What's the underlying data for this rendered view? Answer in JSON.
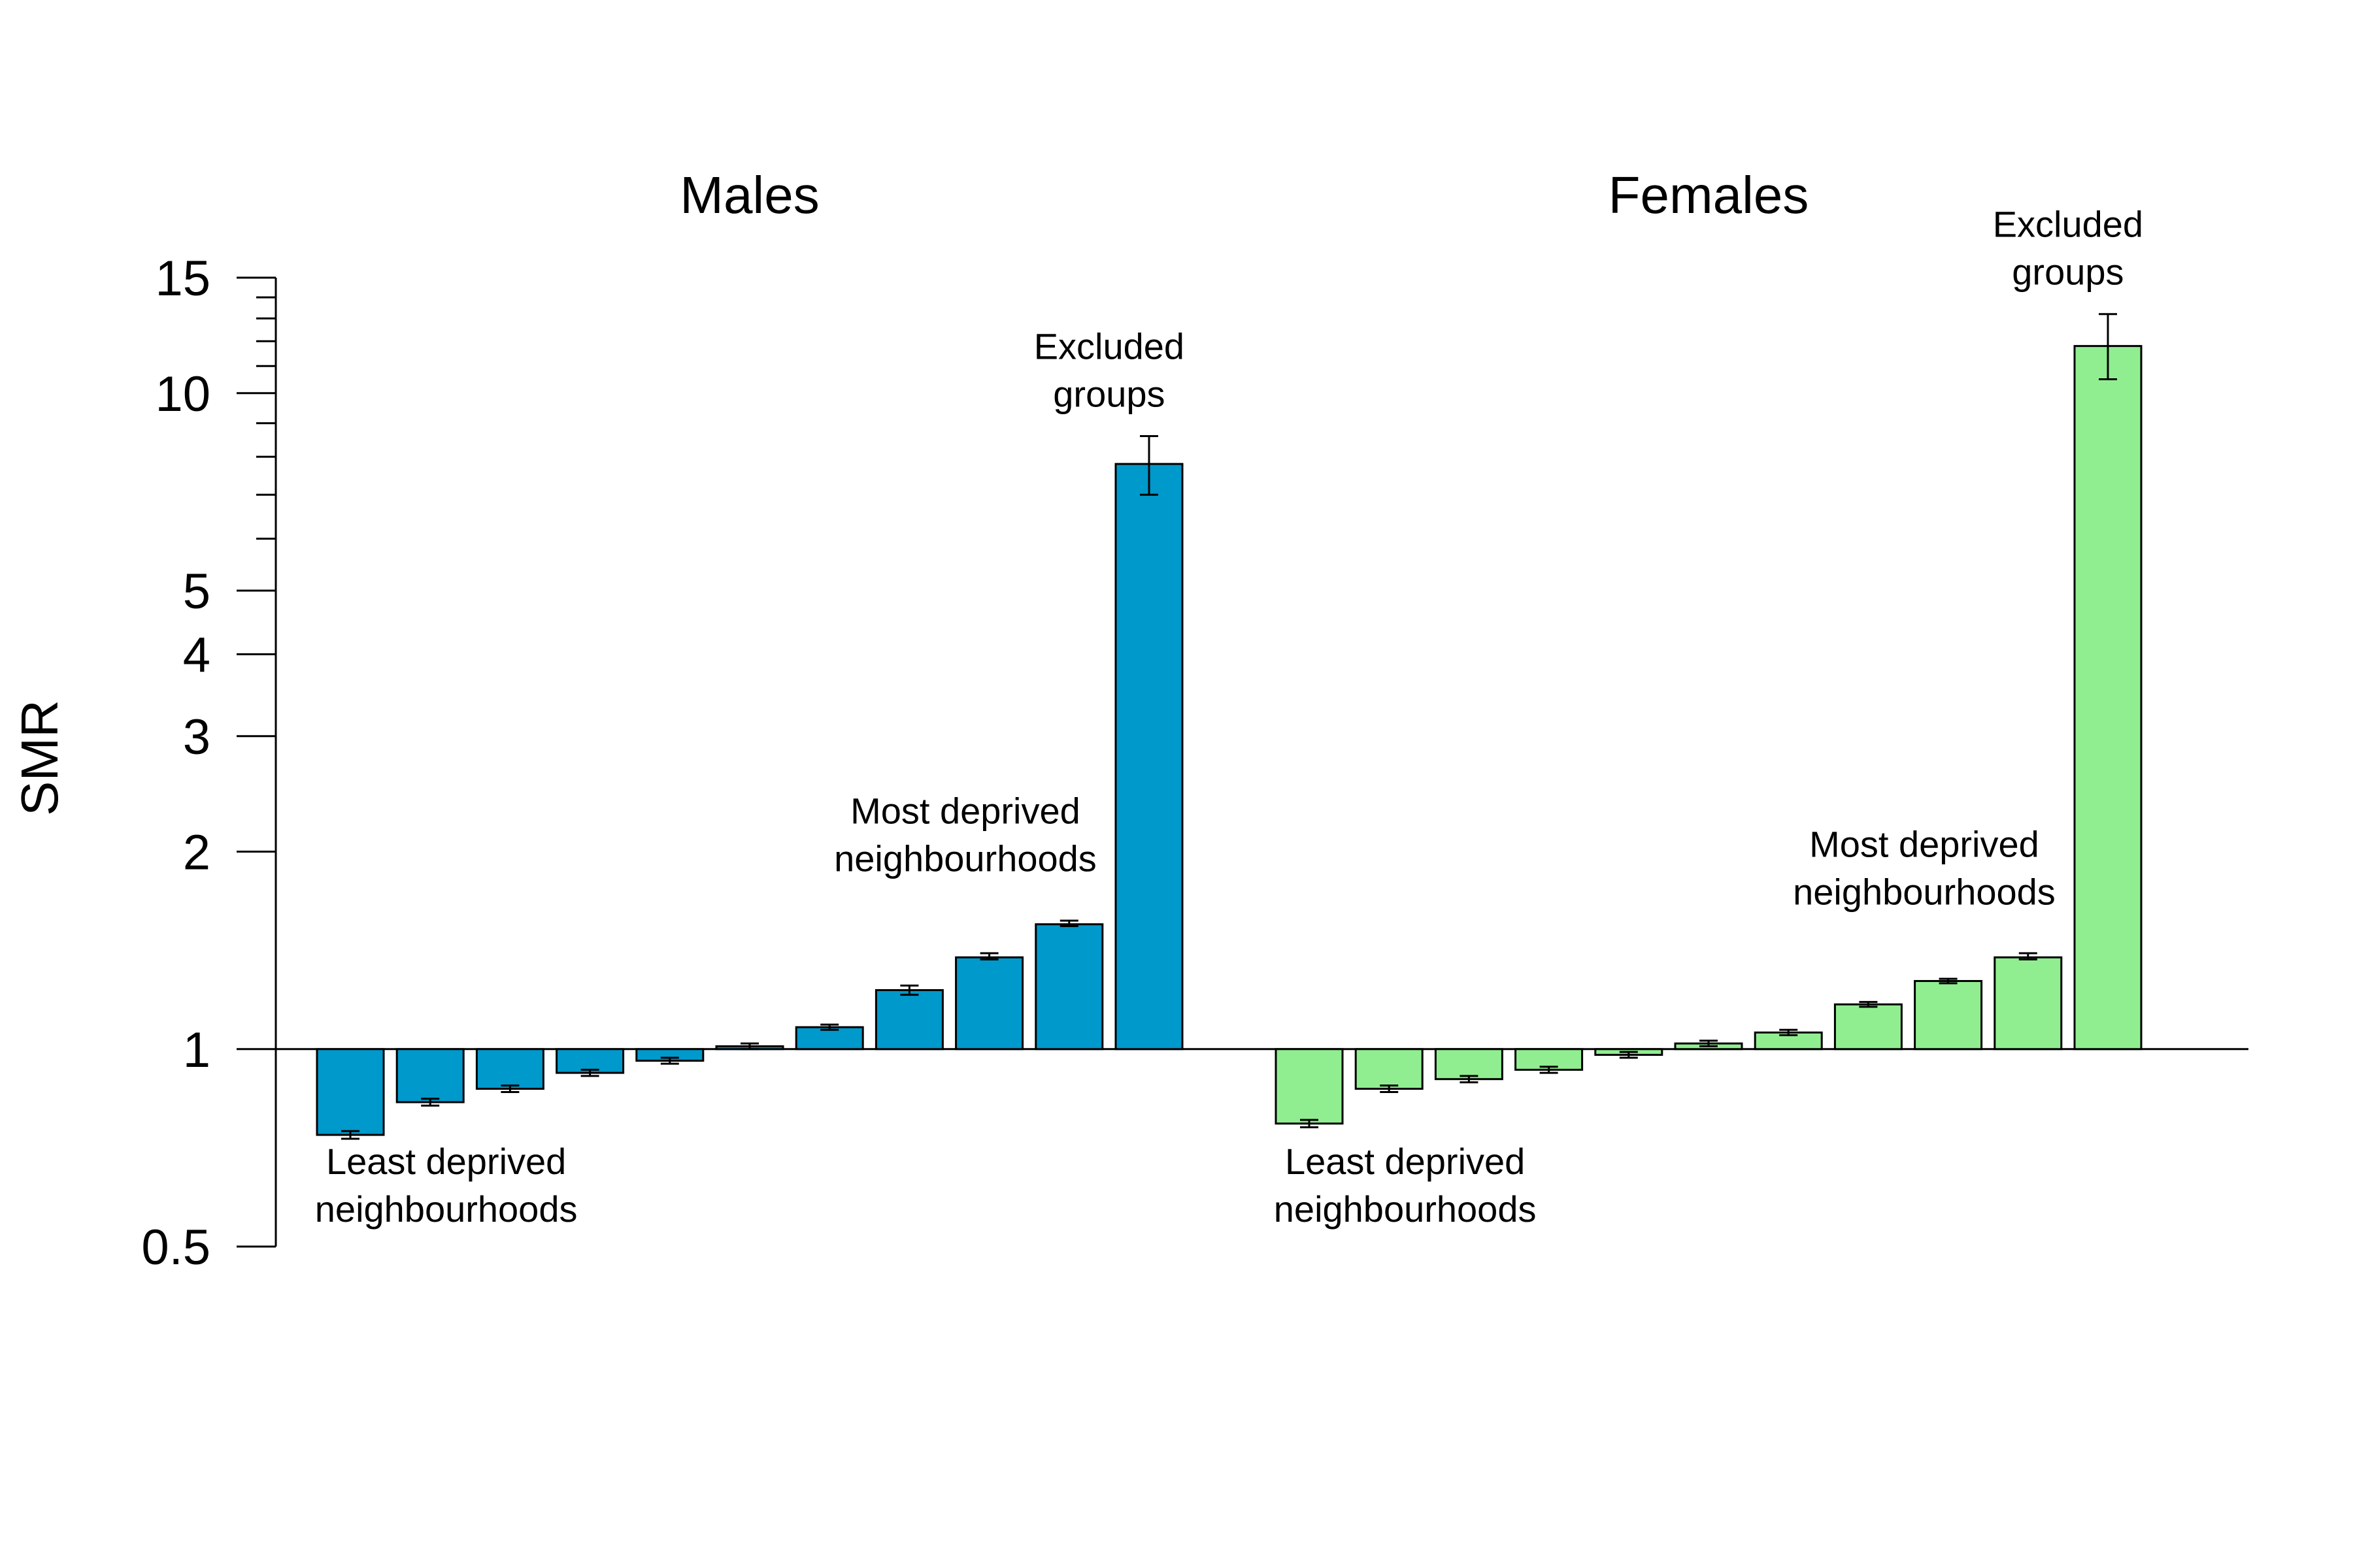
{
  "chart_data": {
    "type": "bar",
    "ylabel": "SMR",
    "yscale": "log",
    "ylim": [
      0.5,
      15
    ],
    "baseline": 1,
    "yticks": [
      {
        "value": 0.5,
        "label": "0.5"
      },
      {
        "value": 1,
        "label": "1"
      },
      {
        "value": 2,
        "label": "2"
      },
      {
        "value": 3,
        "label": "3"
      },
      {
        "value": 4,
        "label": "4"
      },
      {
        "value": 5,
        "label": "5"
      },
      {
        "value": 10,
        "label": "10"
      },
      {
        "value": 15,
        "label": "15"
      }
    ],
    "minor_ticks": [
      6,
      7,
      8,
      9,
      11,
      12,
      13,
      14
    ],
    "grid": false,
    "panels": [
      {
        "title": "Males",
        "color": "#0099cc",
        "values": [
          0.74,
          0.83,
          0.87,
          0.92,
          0.96,
          1.01,
          1.08,
          1.23,
          1.38,
          1.55,
          7.8
        ],
        "ci_low": [
          0.73,
          0.82,
          0.86,
          0.91,
          0.95,
          1.0,
          1.07,
          1.21,
          1.37,
          1.54,
          7.0
        ],
        "ci_high": [
          0.75,
          0.84,
          0.88,
          0.93,
          0.97,
          1.02,
          1.09,
          1.25,
          1.4,
          1.57,
          8.6
        ],
        "annotations": [
          {
            "lines": [
              "Least deprived",
              "neighbourhoods"
            ],
            "anchor": "below-first"
          },
          {
            "lines": [
              "Most deprived",
              "neighbourhoods"
            ],
            "anchor": "above-tenth"
          },
          {
            "lines": [
              "Excluded",
              "groups"
            ],
            "anchor": "above-last"
          }
        ]
      },
      {
        "title": "Females",
        "color": "#90ee90",
        "values": [
          0.77,
          0.87,
          0.9,
          0.93,
          0.98,
          1.02,
          1.06,
          1.17,
          1.27,
          1.38,
          11.8
        ],
        "ci_low": [
          0.76,
          0.86,
          0.89,
          0.92,
          0.97,
          1.01,
          1.05,
          1.16,
          1.26,
          1.37,
          10.5
        ],
        "ci_high": [
          0.78,
          0.88,
          0.91,
          0.94,
          0.99,
          1.03,
          1.07,
          1.18,
          1.28,
          1.4,
          13.2
        ],
        "annotations": [
          {
            "lines": [
              "Least deprived",
              "neighbourhoods"
            ],
            "anchor": "below-first"
          },
          {
            "lines": [
              "Most deprived",
              "neighbourhoods"
            ],
            "anchor": "above-tenth"
          },
          {
            "lines": [
              "Excluded",
              "groups"
            ],
            "anchor": "above-last"
          }
        ]
      }
    ]
  }
}
